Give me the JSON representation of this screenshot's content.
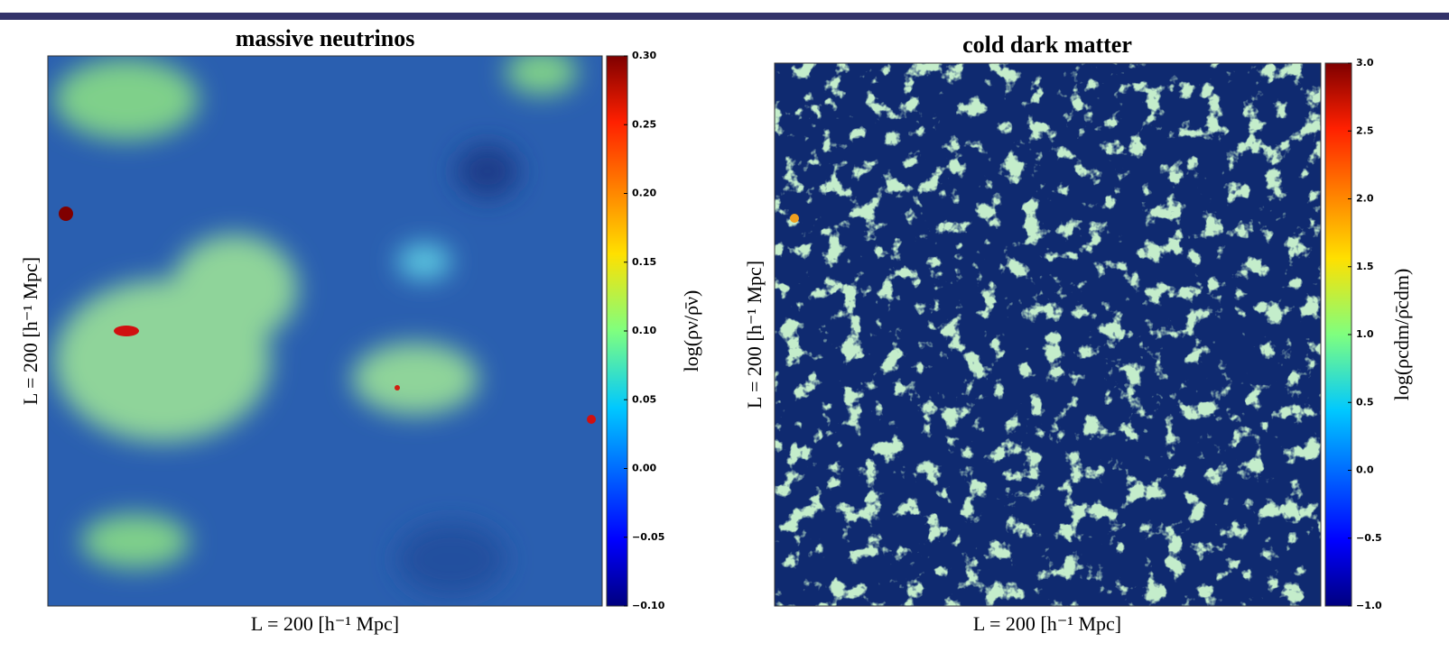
{
  "figure": {
    "panels": [
      {
        "title": "massive neutrinos",
        "xlabel": "L = 200 [h⁻¹ Mpc]",
        "ylabel": "L = 200 [h⁻¹ Mpc]",
        "colorbar_label": "log(ρν/ρ̄ν)",
        "clim": [
          -0.1,
          0.3
        ],
        "cticks": [
          {
            "value": -0.1,
            "label": "−0.10"
          },
          {
            "value": -0.05,
            "label": "−0.05"
          },
          {
            "value": 0,
            "label": "0.00"
          },
          {
            "value": 0.05,
            "label": "0.05"
          },
          {
            "value": 0.1,
            "label": "0.10"
          },
          {
            "value": 0.15,
            "label": "0.15"
          },
          {
            "value": 0.2,
            "label": "0.20"
          },
          {
            "value": 0.25,
            "label": "0.25"
          },
          {
            "value": 0.3,
            "label": "0.30"
          }
        ]
      },
      {
        "title": "cold dark matter",
        "xlabel": "L = 200 [h⁻¹ Mpc]",
        "ylabel": "L = 200 [h⁻¹ Mpc]",
        "colorbar_label": "log(ρcdm/ρ̄cdm)",
        "clim": [
          -1,
          3
        ],
        "cticks": [
          {
            "value": -1,
            "label": "−1.0"
          },
          {
            "value": -0.5,
            "label": "−0.5"
          },
          {
            "value": 0,
            "label": "0.0"
          },
          {
            "value": 0.5,
            "label": "0.5"
          },
          {
            "value": 1,
            "label": "1.0"
          },
          {
            "value": 1.5,
            "label": "1.5"
          },
          {
            "value": 2,
            "label": "2.0"
          },
          {
            "value": 2.5,
            "label": "2.5"
          },
          {
            "value": 3,
            "label": "3.0"
          }
        ]
      }
    ]
  }
}
